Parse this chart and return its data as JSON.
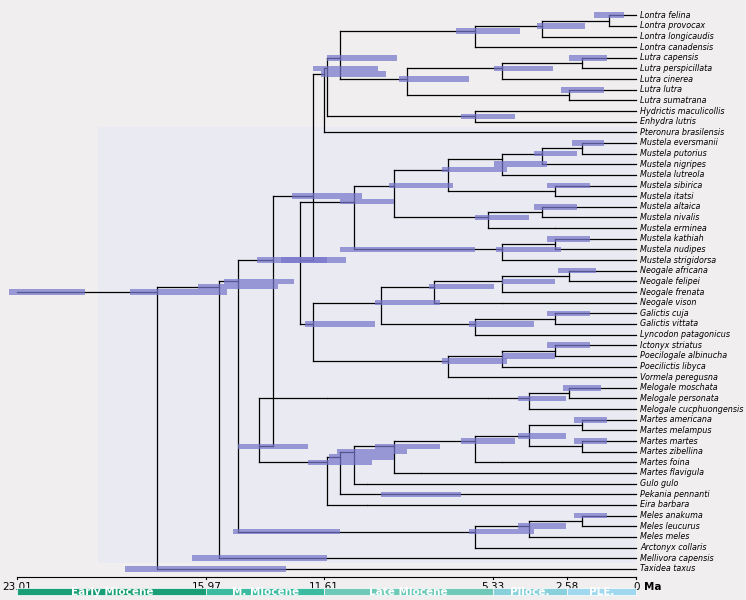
{
  "taxa": [
    "Lontra felina",
    "Lontra provocax",
    "Lontra longicaudis",
    "Lontra canadensis",
    "Lutra capensis",
    "Lutra perspicillata",
    "Lutra cinerea",
    "Lutra lutra",
    "Lutra sumatrana",
    "Hydrictis maculicollis",
    "Enhydra lutris",
    "Pteronura brasilensis",
    "Mustela eversmanii",
    "Mustela putorius",
    "Mustela nigripes",
    "Mustela lutreola",
    "Mustela sibirica",
    "Mustela itatsi",
    "Mustela altaica",
    "Mustela nivalis",
    "Mustela erminea",
    "Mustela kathiah",
    "Mustela nudipes",
    "Mustela strigidorsa",
    "Neogale africana",
    "Neogale felipei",
    "Neogale frenata",
    "Neogale vison",
    "Galictis cuja",
    "Galictis vittata",
    "Lyncodon patagonicus",
    "Ictonyx striatus",
    "Poecilogale albinucha",
    "Poecilictis libyca",
    "Vormela peregusna",
    "Melogale moschata",
    "Melogale personata",
    "Melogale cucphuongensis",
    "Martes americana",
    "Martes melampus",
    "Martes martes",
    "Martes zibellina",
    "Martes foina",
    "Martes flavigula",
    "Gulo gulo",
    "Pekania pennanti",
    "Eira barbara",
    "Meles anakuma",
    "Meles leucurus",
    "Meles meles",
    "Arctonyx collaris",
    "Mellivora capensis",
    "Taxidea taxus"
  ],
  "n_taxa": 53,
  "time_max": 23.01,
  "epoch_names": [
    "Early Miocene",
    "M. Miocene",
    "Late Miocene",
    "Plioce.",
    "PLE."
  ],
  "epoch_bounds": [
    23.01,
    15.97,
    11.61,
    5.33,
    2.58,
    0
  ],
  "epoch_colors": [
    "#1a9e76",
    "#3cbba0",
    "#6ec9b8",
    "#8ad0da",
    "#9fd8ef"
  ],
  "bar_color": "#7777cc",
  "bar_alpha": 0.72,
  "bg_color_main": "#f0eeee",
  "bg_color_shade": "#eaeaf3",
  "tree_lw": 0.9,
  "label_fontsize": 5.8,
  "tick_fontsize": 7.5,
  "epoch_fontsize": 7.5
}
